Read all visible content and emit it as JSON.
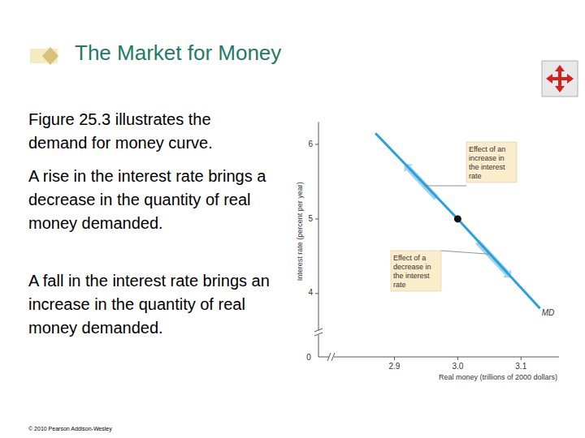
{
  "slide": {
    "title": "The Market for Money",
    "paragraphs": [
      "Figure 25.3 illustrates the demand for money curve.",
      "A rise in the interest rate brings a decrease in the quantity of real money demanded.",
      "A fall in the interest rate brings an increase in the quantity of real money demanded."
    ],
    "footer": "© 2010 Pearson Addison-Wesley"
  },
  "chart_data": {
    "type": "line",
    "x_label": "Real money (trillions of 2000 dollars)",
    "y_label": "Interest rate (percent per year)",
    "origin_label": "0",
    "series": [
      {
        "name": "MD",
        "color": "#2aa0dc",
        "x": [
          2.87,
          3.0,
          3.13
        ],
        "values": [
          6.15,
          5.0,
          3.8
        ]
      }
    ],
    "point": {
      "x": 3.0,
      "y": 5.0
    },
    "annotations": [
      {
        "lines": [
          "Effect of an",
          "increase in",
          "the interest",
          "rate"
        ]
      },
      {
        "lines": [
          "Effect of a",
          "decrease in",
          "the interest",
          "rate"
        ]
      }
    ],
    "xlim": [
      2.78,
      3.16
    ],
    "ylim": [
      3.15,
      6.3
    ],
    "xticks": [
      2.9,
      {
        "value": 3,
        "label": "3.0"
      },
      3.1
    ],
    "yticks": [
      4,
      5,
      6
    ],
    "grid": false
  }
}
